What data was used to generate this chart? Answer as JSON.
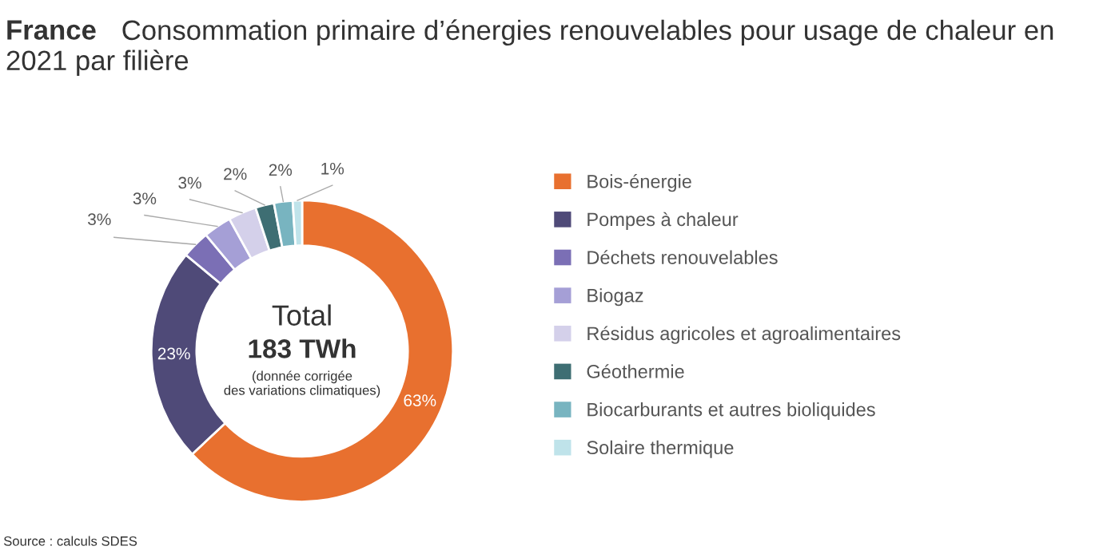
{
  "chart_data": {
    "type": "donut",
    "title": "France Consommation primaire d’énergies renouvelables pour usage de chaleur en 2021 par filière",
    "categories": [
      "Bois-énergie",
      "Pompes à chaleur",
      "Déchets renouvelables",
      "Biogaz",
      "Résidus agricoles et agroalimentaires",
      "Géothermie",
      "Biocarburants et autres bioliquides",
      "Solaire thermique"
    ],
    "values": [
      63,
      23,
      3,
      3,
      3,
      2,
      2,
      1
    ],
    "value_labels": [
      "63%",
      "23%",
      "3%",
      "3%",
      "3%",
      "2%",
      "2%",
      "1%"
    ],
    "colors": [
      "#e8702f",
      "#4f4a78",
      "#7b6fb5",
      "#a59fd6",
      "#d4d0ea",
      "#3e6e73",
      "#78b4c0",
      "#bfe3ea"
    ],
    "legend": "right",
    "annotations": [
      "Total",
      "183 TWh",
      "(donnée corrigée des variations climatiques)",
      "Source : calculs SDES"
    ]
  }
}
